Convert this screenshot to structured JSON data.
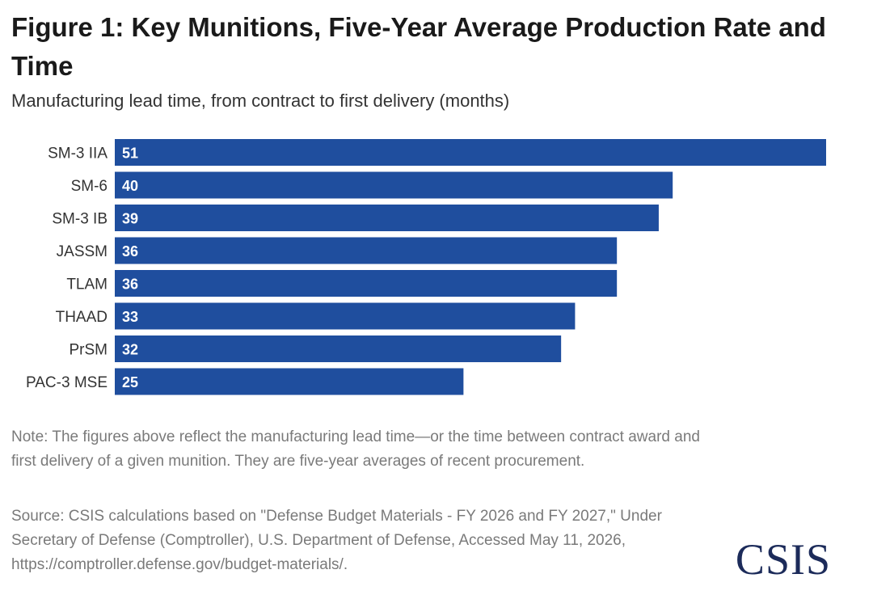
{
  "title": "Figure 1: Key Munitions, Five-Year Average Production Rate and Time",
  "subtitle": "Manufacturing lead time, from contract to first delivery (months)",
  "note": "Note: The figures above reflect the manufacturing lead time—or the time between contract award and first delivery of a given munition. They are five-year averages of recent procurement.",
  "source": "Source: CSIS calculations based on \"Defense Budget Materials - FY 2026 and FY 2027,\" Under Secretary of Defense (Comptroller), U.S. Department of Defense, Accessed May 11, 2026, https://comptroller.defense.gov/budget-materials/.",
  "logo_text": "CSIS",
  "colors": {
    "bar": "#1f4e9e",
    "logo": "#1c2b5a"
  },
  "chart_data": {
    "type": "bar",
    "orientation": "horizontal",
    "title": "Figure 1: Key Munitions, Five-Year Average Production Rate and Time",
    "subtitle": "Manufacturing lead time, from contract to first delivery (months)",
    "categories": [
      "SM-3 IIA",
      "SM-6",
      "SM-3 IB",
      "JASSM",
      "TLAM",
      "THAAD",
      "PrSM",
      "PAC-3 MSE"
    ],
    "values": [
      51,
      40,
      39,
      36,
      36,
      33,
      32,
      25
    ],
    "xlim": [
      0,
      51
    ],
    "grid": false,
    "legend": "none",
    "data_labels": "inside-start"
  }
}
